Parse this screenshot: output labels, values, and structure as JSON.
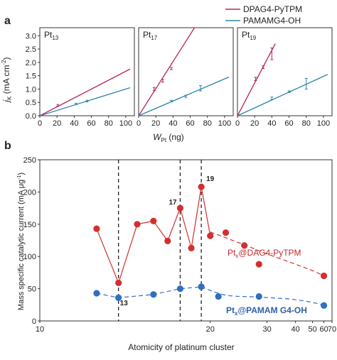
{
  "legend": {
    "items": [
      {
        "label": "DPAG4-PyTPM",
        "color": "#b5245e"
      },
      {
        "label": "PAMAMG4-OH",
        "color": "#2a84a8"
      }
    ]
  },
  "panel_a": {
    "label": "a",
    "ylabel_main": "j",
    "ylabel_sub": "K",
    "ylabel_unit": " (mA cm",
    "ylabel_sup": "-2",
    "ylabel_close": ")",
    "xlabel_main": "W",
    "xlabel_sub": "Pt",
    "xlabel_unit": " (ng)"
  },
  "panel_b": {
    "label": "b",
    "ylabel": "Mass specific catalytic current (mA μg",
    "ylabel_sup": "-1",
    "ylabel_close": ")",
    "xlabel": "Atomicity of platinum cluster",
    "annotations": {
      "a13": "13",
      "a17": "17",
      "a19": "19"
    },
    "series_label_red_main": "Pt",
    "series_label_red_sub": "x",
    "series_label_red_rest": "@DAG4-PyTPM",
    "series_label_blue_main": "Pt",
    "series_label_blue_sub": "x",
    "series_label_blue_rest": "@PAMAM G4-OH"
  },
  "chart_data": [
    {
      "type": "line",
      "panel": "a",
      "title_main": "Pt",
      "title_sub": "13",
      "xlim": [
        0,
        110
      ],
      "ylim": [
        0,
        3.3
      ],
      "xticks": [
        0,
        20,
        40,
        60,
        80,
        100
      ],
      "yticks": [
        0,
        0.5,
        1.0,
        1.5,
        2.0,
        2.5,
        3.0
      ],
      "ytick_labels": [
        "0.0",
        "0.5",
        "1.0",
        "1.5",
        "2.0",
        "2.5",
        "3.0"
      ],
      "series": [
        {
          "name": "DPAG4-PyTPM",
          "color": "#b5245e",
          "line": [
            [
              0,
              0
            ],
            [
              105,
              1.75
            ]
          ],
          "points": [
            {
              "x": 21,
              "y": 0.39,
              "err": 0.03
            }
          ]
        },
        {
          "name": "PAMAMG4-OH",
          "color": "#2a84a8",
          "line": [
            [
              0,
              0
            ],
            [
              105,
              1.05
            ]
          ],
          "points": [
            {
              "x": 42,
              "y": 0.44,
              "err": 0.03
            },
            {
              "x": 55,
              "y": 0.55,
              "err": 0.03
            }
          ]
        }
      ]
    },
    {
      "type": "line",
      "panel": "a",
      "title_main": "Pt",
      "title_sub": "17",
      "xlim": [
        0,
        110
      ],
      "ylim": [
        0,
        3.3
      ],
      "xticks": [
        0,
        20,
        40,
        60,
        80,
        100
      ],
      "series": [
        {
          "name": "DPAG4-PyTPM",
          "color": "#b5245e",
          "line": [
            [
              0,
              0
            ],
            [
              65,
              3.3
            ]
          ],
          "points": [
            {
              "x": 18,
              "y": 1.0,
              "err": 0.06
            },
            {
              "x": 28,
              "y": 1.31,
              "err": 0.05
            },
            {
              "x": 38,
              "y": 1.77,
              "err": 0.04
            }
          ]
        },
        {
          "name": "PAMAMG4-OH",
          "color": "#2a84a8",
          "line": [
            [
              0,
              0
            ],
            [
              105,
              1.45
            ]
          ],
          "points": [
            {
              "x": 38,
              "y": 0.55,
              "err": 0.03
            },
            {
              "x": 55,
              "y": 0.73,
              "err": 0.04
            },
            {
              "x": 72,
              "y": 1.03,
              "err": 0.1
            }
          ]
        }
      ]
    },
    {
      "type": "line",
      "panel": "a",
      "title_main": "Pt",
      "title_sub": "19",
      "xlim": [
        0,
        110
      ],
      "ylim": [
        0,
        3.3
      ],
      "xticks": [
        0,
        20,
        40,
        60,
        80,
        100
      ],
      "series": [
        {
          "name": "DPAG4-PyTPM",
          "color": "#b5245e",
          "line": [
            [
              0,
              0
            ],
            [
              44,
              2.7
            ]
          ],
          "points": [
            {
              "x": 21,
              "y": 1.38,
              "err": 0.06
            },
            {
              "x": 30,
              "y": 1.82,
              "err": 0.05
            },
            {
              "x": 40,
              "y": 2.32,
              "err": 0.22
            }
          ]
        },
        {
          "name": "PAMAMG4-OH",
          "color": "#2a84a8",
          "line": [
            [
              0,
              0
            ],
            [
              105,
              1.55
            ]
          ],
          "points": [
            {
              "x": 40,
              "y": 0.65,
              "err": 0.05
            },
            {
              "x": 60,
              "y": 0.9,
              "err": 0.03
            },
            {
              "x": 80,
              "y": 1.2,
              "err": 0.2
            }
          ]
        }
      ]
    },
    {
      "type": "line",
      "panel": "b",
      "xlim": [
        10,
        70
      ],
      "ylim": [
        0,
        250
      ],
      "x_scale": "reciprocal",
      "xticks": [
        10,
        20,
        30,
        40,
        50,
        60,
        70
      ],
      "yticks": [
        0,
        50,
        100,
        150,
        200,
        250
      ],
      "dashed_verticals": [
        13,
        17,
        19
      ],
      "series": [
        {
          "name": "Pt_x@DAG4-PyTPM",
          "color": "#d32f2f",
          "x": [
            12,
            13,
            14,
            15,
            16,
            17,
            18,
            19,
            20,
            22,
            25,
            28,
            60
          ],
          "y": [
            143,
            59,
            150,
            155,
            124,
            175,
            113,
            208,
            132,
            137,
            117,
            88,
            70
          ],
          "solid_until_x": 20,
          "trend": {
            "x": [
              20,
              25,
              30,
              40,
              50,
              60
            ],
            "y": [
              138,
              118,
              104,
              88,
              78,
              70
            ]
          }
        },
        {
          "name": "Pt_x@PAMAM G4-OH",
          "color": "#2f6fbf",
          "x": [
            12,
            13,
            15,
            17,
            19,
            21,
            28,
            60
          ],
          "y": [
            43,
            36,
            41,
            50,
            53,
            38,
            38,
            24
          ],
          "trend": {
            "x": [
              19,
              22,
              28,
              40,
              60
            ],
            "y": [
              53,
              40,
              37,
              33,
              25
            ]
          }
        }
      ]
    }
  ]
}
